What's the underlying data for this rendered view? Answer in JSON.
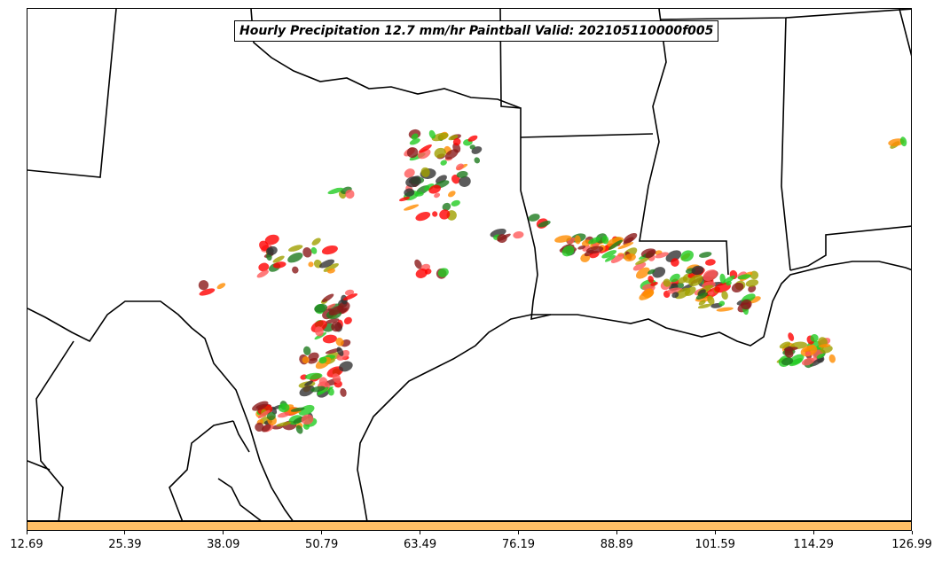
{
  "title": "Hourly Precipitation 12.7 mm/hr Paintball Valid: 202105110000f005",
  "colorbar": {
    "color": "#ffbf66",
    "ticks": [
      "12.69",
      "25.39",
      "38.09",
      "50.79",
      "63.49",
      "76.19",
      "88.89",
      "101.59",
      "114.29",
      "126.99"
    ]
  },
  "palette": {
    "red": "#ff0000",
    "dark_red": "#8b1a1a",
    "orange": "#ff8c00",
    "olive": "#a0a000",
    "green": "#22cc22",
    "dark_green": "#1e7b1e",
    "dark_gray": "#333333",
    "salmon": "#ff5a5a"
  }
}
